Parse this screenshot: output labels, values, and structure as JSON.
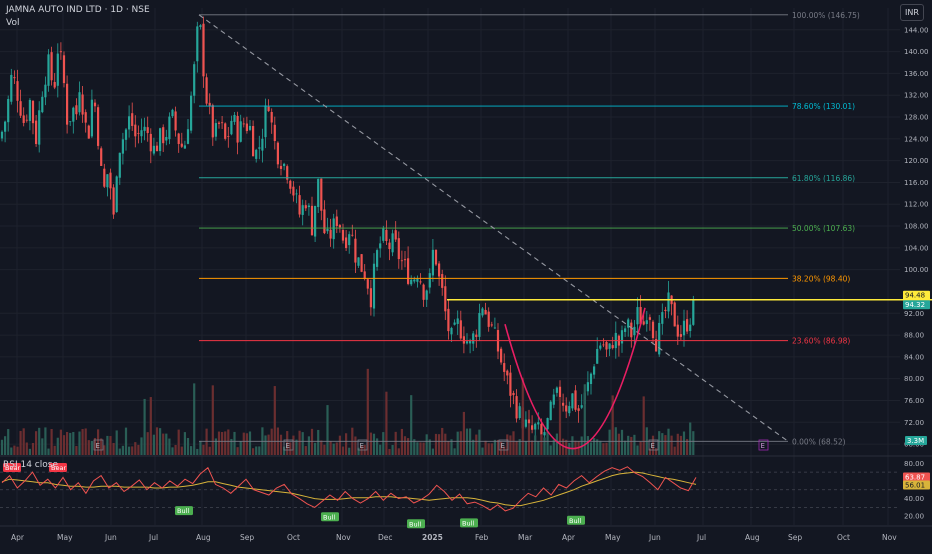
{
  "header": {
    "ticker": "JAMNA AUTO IND LTD · 1D · NSE",
    "vol_label": "Vol",
    "currency": "INR"
  },
  "colors": {
    "bg": "#131722",
    "up": "#26a69a",
    "down": "#ef5350",
    "vol_up": "#2a5e56",
    "vol_down": "#6b2e30",
    "grid": "#1e222d",
    "axis_text": "#b2b5be",
    "resistance": "#ffeb3b",
    "cup": "#e91e63",
    "rsi_line": "#ef5350",
    "rsi_ma": "#d8b43a",
    "bull": "#4caf50",
    "bear": "#f23645"
  },
  "chart_data": [
    {
      "type": "candlestick",
      "title": "JAMNA AUTO IND LTD · 1D · NSE",
      "ylim": [
        66,
        148
      ],
      "y_ticks": [
        68,
        72,
        76,
        80,
        84,
        88,
        92,
        100,
        104,
        108,
        112,
        116,
        120,
        124,
        128,
        132,
        136,
        140,
        144
      ],
      "y_tick_labels": [
        "68.00",
        "72.00",
        "76.00",
        "80.00",
        "84.00",
        "88.00",
        "92.00",
        "100.00",
        "104.00",
        "108.00",
        "112.00",
        "116.00",
        "120.00",
        "124.00",
        "128.00",
        "132.00",
        "136.00",
        "140.00",
        "144.00"
      ],
      "x_tick_labels": [
        "Apr",
        "May",
        "Jun",
        "Jul",
        "Aug",
        "Sep",
        "Oct",
        "Nov",
        "Dec",
        "2025",
        "Feb",
        "Mar",
        "Apr",
        "May",
        "Jun",
        "Jul",
        "Aug",
        "Sep",
        "Oct",
        "Nov"
      ],
      "price_path": [
        [
          0,
          124
        ],
        [
          6,
          128
        ],
        [
          12,
          136
        ],
        [
          18,
          132
        ],
        [
          24,
          127
        ],
        [
          30,
          131
        ],
        [
          36,
          124
        ],
        [
          42,
          133
        ],
        [
          48,
          138
        ],
        [
          54,
          133
        ],
        [
          58,
          141
        ],
        [
          63,
          136
        ],
        [
          68,
          126
        ],
        [
          72,
          130
        ],
        [
          76,
          128
        ],
        [
          80,
          135
        ],
        [
          84,
          128
        ],
        [
          88,
          124
        ],
        [
          93,
          133
        ],
        [
          97,
          127
        ],
        [
          101,
          118
        ],
        [
          105,
          114
        ],
        [
          109,
          120
        ],
        [
          113,
          107
        ],
        [
          116,
          118
        ],
        [
          120,
          123
        ],
        [
          125,
          125
        ],
        [
          130,
          128
        ],
        [
          136,
          124
        ],
        [
          142,
          126
        ],
        [
          148,
          125
        ],
        [
          154,
          122
        ],
        [
          160,
          124
        ],
        [
          166,
          125
        ],
        [
          172,
          128
        ],
        [
          178,
          124
        ],
        [
          184,
          122
        ],
        [
          190,
          130
        ],
        [
          195,
          138
        ],
        [
          199,
          146.7
        ],
        [
          202,
          140
        ],
        [
          206,
          132
        ],
        [
          210,
          128
        ],
        [
          214,
          124
        ],
        [
          220,
          127
        ],
        [
          226,
          123
        ],
        [
          232,
          128
        ],
        [
          238,
          125
        ],
        [
          244,
          127
        ],
        [
          250,
          126
        ],
        [
          255,
          121
        ],
        [
          260,
          123
        ],
        [
          265,
          128
        ],
        [
          268,
          132
        ],
        [
          272,
          126
        ],
        [
          276,
          122
        ],
        [
          282,
          120
        ],
        [
          288,
          118
        ],
        [
          294,
          114
        ],
        [
          300,
          110
        ],
        [
          306,
          113
        ],
        [
          312,
          108
        ],
        [
          318,
          116
        ],
        [
          322,
          110
        ],
        [
          326,
          105
        ],
        [
          332,
          107
        ],
        [
          338,
          110
        ],
        [
          344,
          105
        ],
        [
          350,
          108
        ],
        [
          355,
          103
        ],
        [
          360,
          101
        ],
        [
          366,
          99
        ],
        [
          371,
          95
        ],
        [
          376,
          102
        ],
        [
          382,
          106
        ],
        [
          388,
          104
        ],
        [
          394,
          105
        ],
        [
          400,
          102
        ],
        [
          406,
          100
        ],
        [
          412,
          98
        ],
        [
          418,
          100
        ],
        [
          424,
          96
        ],
        [
          430,
          98
        ],
        [
          434,
          105
        ],
        [
          438,
          99
        ],
        [
          442,
          96
        ],
        [
          447,
          90
        ],
        [
          452,
          87
        ],
        [
          458,
          90
        ],
        [
          464,
          88
        ],
        [
          470,
          86
        ],
        [
          476,
          89
        ],
        [
          482,
          94
        ],
        [
          488,
          91
        ],
        [
          494,
          88
        ],
        [
          500,
          84
        ],
        [
          506,
          80
        ],
        [
          512,
          77
        ],
        [
          518,
          74
        ],
        [
          524,
          72
        ],
        [
          530,
          70
        ],
        [
          536,
          71
        ],
        [
          542,
          69
        ],
        [
          548,
          72
        ],
        [
          554,
          76
        ],
        [
          560,
          77
        ],
        [
          566,
          75
        ],
        [
          572,
          77
        ],
        [
          578,
          74
        ],
        [
          584,
          76
        ],
        [
          590,
          80
        ],
        [
          596,
          85
        ],
        [
          602,
          87
        ],
        [
          608,
          84
        ],
        [
          614,
          88
        ],
        [
          620,
          86
        ],
        [
          626,
          90
        ],
        [
          632,
          88
        ],
        [
          638,
          92
        ],
        [
          644,
          90
        ],
        [
          648,
          94
        ],
        [
          652,
          90
        ],
        [
          656,
          87
        ],
        [
          662,
          90
        ],
        [
          668,
          94
        ],
        [
          674,
          91
        ],
        [
          680,
          88
        ],
        [
          686,
          90
        ],
        [
          692,
          92
        ],
        [
          696,
          94.3
        ]
      ],
      "fibonacci": {
        "x_start_label": "Aug",
        "levels": [
          {
            "pct": "100.00%",
            "price": 146.75,
            "label": "100.00% (146.75)",
            "color": "#787b86"
          },
          {
            "pct": "78.60%",
            "price": 130.01,
            "label": "78.60% (130.01)",
            "color": "#00bcd4"
          },
          {
            "pct": "61.80%",
            "price": 116.86,
            "label": "61.80% (116.86)",
            "color": "#26a69a"
          },
          {
            "pct": "50.00%",
            "price": 107.63,
            "label": "50.00% (107.63)",
            "color": "#4caf50"
          },
          {
            "pct": "38.20%",
            "price": 98.4,
            "label": "38.20% (98.40)",
            "color": "#ff9800"
          },
          {
            "pct": "23.60%",
            "price": 86.98,
            "label": "23.60% (86.98)",
            "color": "#f23645"
          },
          {
            "pct": "0.00%",
            "price": 68.52,
            "label": "0.00% (68.52)",
            "color": "#787b86"
          }
        ]
      },
      "resistance": {
        "price": 94.48,
        "label": "94.48"
      },
      "last_price": {
        "price": 94.32,
        "label": "94.32"
      },
      "trendline": {
        "from": 146.75,
        "to": 68.52,
        "style": "dashed"
      },
      "cup": {
        "left": 90,
        "bottom": 69.5,
        "right": 93
      },
      "volume_badge": "3.3M",
      "event_markers": [
        "E",
        "E",
        "E",
        "E",
        "E",
        "E"
      ]
    },
    {
      "type": "line",
      "title": "RSI 14 close",
      "ylim": [
        10,
        86
      ],
      "y_ticks": [
        20,
        40,
        60,
        80
      ],
      "y_tick_labels": [
        "20.00",
        "40.00",
        "60.00",
        "80.00"
      ],
      "bands": [
        70,
        50,
        30
      ],
      "series": [
        {
          "name": "RSI",
          "last": "63.87",
          "values": [
            58,
            66,
            52,
            60,
            70,
            55,
            62,
            52,
            64,
            50,
            58,
            46,
            60,
            66,
            52,
            58,
            48,
            54,
            61,
            50,
            58,
            52,
            60,
            54,
            62,
            57,
            68,
            75,
            56,
            52,
            46,
            54,
            62,
            50,
            47,
            44,
            52,
            56,
            45,
            40,
            34,
            30,
            37,
            44,
            38,
            48,
            40,
            35,
            40,
            48,
            38,
            46,
            40,
            42,
            35,
            39,
            45,
            55,
            48,
            38,
            45,
            34,
            36,
            32,
            27,
            33,
            26,
            29,
            38,
            46,
            42,
            52,
            44,
            56,
            52,
            60,
            66,
            58,
            65,
            71,
            75,
            72,
            76,
            69,
            65,
            58,
            50,
            64,
            58,
            52,
            49,
            64
          ]
        },
        {
          "name": "RSI MA",
          "last": "56.01",
          "values": [
            59,
            62,
            61,
            60,
            59,
            58,
            58,
            56,
            55,
            54,
            54,
            53,
            53,
            54,
            54,
            54,
            53,
            53,
            53,
            53,
            52,
            52,
            53,
            53,
            54,
            55,
            57,
            59,
            59,
            57,
            55,
            53,
            52,
            51,
            50,
            49,
            48,
            47,
            46,
            44,
            42,
            40,
            39,
            39,
            39,
            40,
            41,
            41,
            41,
            42,
            42,
            42,
            41,
            41,
            40,
            39,
            38,
            39,
            40,
            41,
            41,
            41,
            40,
            38,
            36,
            35,
            33,
            32,
            32,
            34,
            36,
            38,
            41,
            44,
            47,
            50,
            54,
            57,
            60,
            63,
            66,
            68,
            69,
            70,
            69,
            67,
            65,
            63,
            62,
            60,
            58,
            56
          ]
        }
      ],
      "signals": [
        {
          "label": "Bear",
          "type": "bear",
          "value": 68
        },
        {
          "label": "Bear",
          "type": "bear",
          "value": 68
        },
        {
          "label": "Bull",
          "type": "bull",
          "value": 36
        },
        {
          "label": "Bull",
          "type": "bull",
          "value": 29
        },
        {
          "label": "Bull",
          "type": "bull",
          "value": 21
        },
        {
          "label": "Bull",
          "type": "bull",
          "value": 22
        },
        {
          "label": "Bull",
          "type": "bull",
          "value": 25
        }
      ]
    }
  ]
}
